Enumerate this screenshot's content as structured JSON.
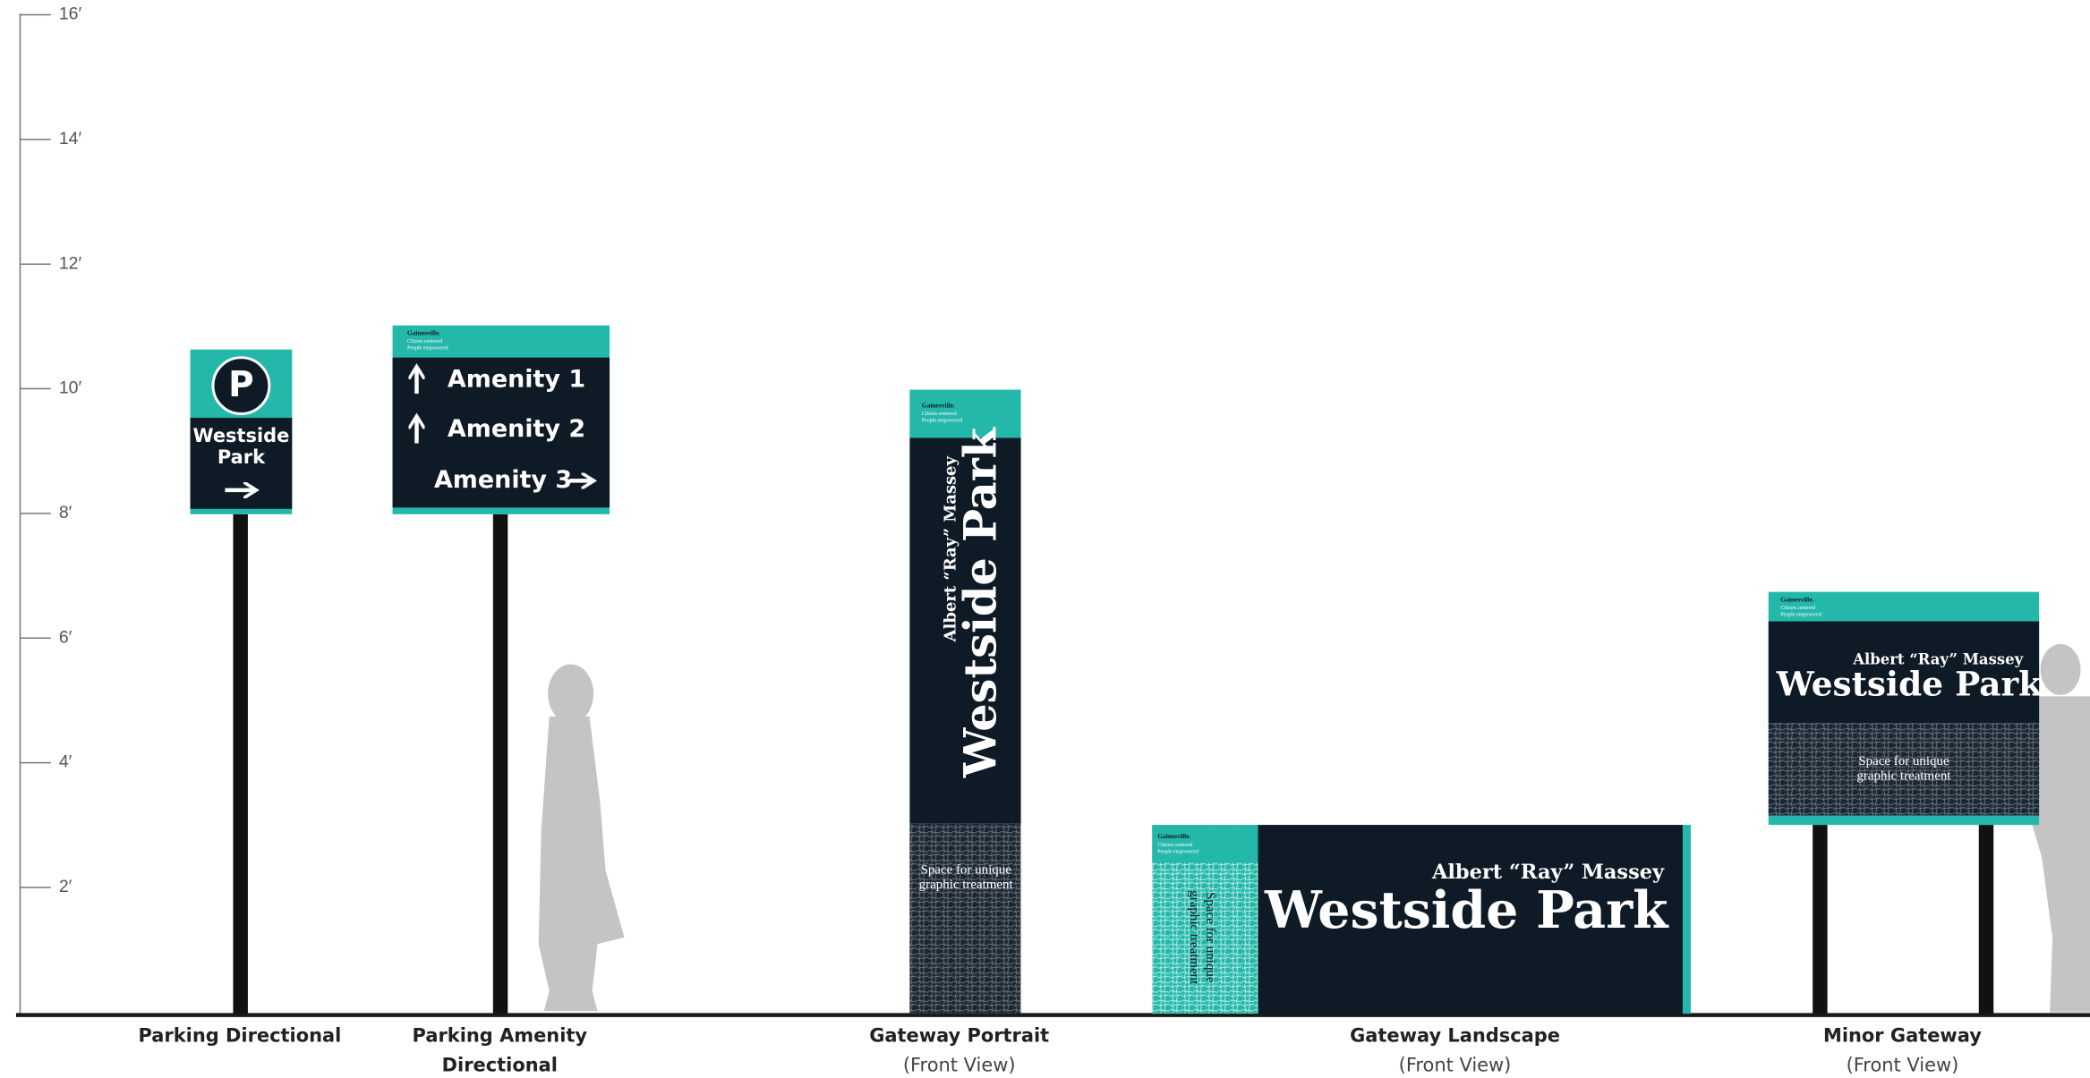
{
  "scale": {
    "ticks": [
      "16′",
      "14′",
      "12′",
      "10′",
      "8′",
      "6′",
      "4′",
      "2′"
    ]
  },
  "parking_directional": {
    "icon": "P",
    "lines": [
      "Westside",
      "Park"
    ],
    "caption": "Parking Directional"
  },
  "parking_amenity": {
    "brand": [
      "Gainesville.",
      "Citizen centered",
      "People empowered"
    ],
    "items": [
      "Amenity 1",
      "Amenity 2",
      "Amenity 3"
    ],
    "caption": [
      "Parking Amenity",
      "Directional"
    ]
  },
  "gateway_portrait": {
    "brand": [
      "Gainesville.",
      "Citizen centered",
      "People empowered"
    ],
    "subtitle": "Albert “Ray” Massey",
    "title": "Westside Park",
    "note": [
      "Space for unique",
      "graphic treatment"
    ],
    "caption": "Gateway Portrait",
    "view": "(Front View)"
  },
  "gateway_landscape": {
    "brand": [
      "Gainesville.",
      "Citizen centered",
      "People empowered"
    ],
    "subtitle": "Albert “Ray” Massey",
    "title": "Westside Park",
    "note": [
      "Space for unique",
      "graphic treatment"
    ],
    "caption": "Gateway Landscape",
    "view": "(Front View)"
  },
  "minor_gateway": {
    "brand": [
      "Gainesville.",
      "Citizen centered",
      "People empowered"
    ],
    "subtitle": "Albert “Ray” Massey",
    "title": "Westside Park",
    "note": [
      "Space for unique",
      "graphic treatment"
    ],
    "caption": "Minor Gateway",
    "view": "(Front View)"
  }
}
